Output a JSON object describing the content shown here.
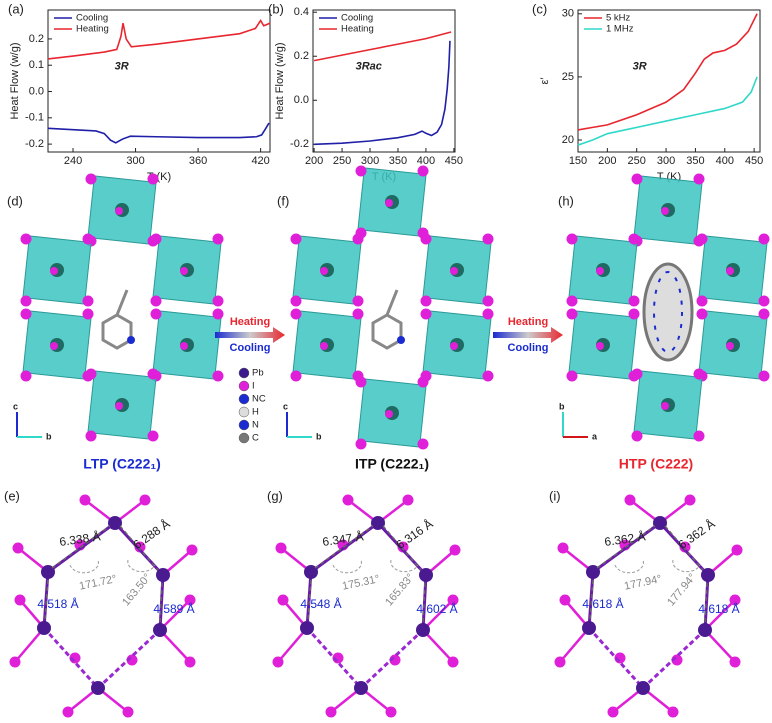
{
  "chart_data": [
    {
      "type": "line",
      "panel_label": "(a)",
      "xlabel": "T (K)",
      "ylabel": "Heat Flow (w/g)",
      "annotation": "3R",
      "legend": "upper left",
      "xlim": [
        216,
        429
      ],
      "ylim": [
        -0.23,
        0.31
      ],
      "xticks": [
        240,
        300,
        360,
        420
      ],
      "yticks": [
        0.2,
        0.1,
        {
          "value": 0,
          "label": "0.0"
        },
        -0.1,
        -0.2
      ],
      "series": [
        {
          "name": "Cooling",
          "color": "#1f1fa8",
          "x": [
            216,
            240,
            262,
            270,
            276,
            281,
            288,
            295,
            320,
            360,
            400,
            416,
            421,
            425,
            428
          ],
          "values": [
            -0.14,
            -0.145,
            -0.15,
            -0.16,
            -0.185,
            -0.195,
            -0.18,
            -0.17,
            -0.172,
            -0.175,
            -0.175,
            -0.172,
            -0.165,
            -0.14,
            -0.12
          ]
        },
        {
          "name": "Heating",
          "color": "#e8262f",
          "x": [
            216,
            240,
            270,
            282,
            286,
            288,
            291,
            296,
            320,
            360,
            400,
            415,
            420,
            423,
            426,
            429
          ],
          "values": [
            0.124,
            0.135,
            0.15,
            0.16,
            0.21,
            0.26,
            0.2,
            0.17,
            0.18,
            0.2,
            0.22,
            0.24,
            0.27,
            0.25,
            0.255,
            0.26
          ]
        }
      ]
    },
    {
      "type": "line",
      "panel_label": "(b)",
      "xlabel": "T (K)",
      "ylabel": "Heat Flow (w/g)",
      "annotation": "3Rac",
      "legend": "upper left",
      "xlim": [
        198,
        452
      ],
      "ylim": [
        -0.235,
        0.41
      ],
      "xticks": [
        200,
        250,
        300,
        350,
        400,
        450
      ],
      "yticks": [
        0.4,
        0.2,
        {
          "value": 0,
          "label": "0.0"
        },
        -0.2
      ],
      "series": [
        {
          "name": "Cooling",
          "color": "#1f1fa8",
          "x": [
            200,
            250,
            300,
            350,
            380,
            393,
            400,
            410,
            420,
            428,
            434,
            438,
            441,
            443
          ],
          "values": [
            -0.2,
            -0.195,
            -0.185,
            -0.17,
            -0.155,
            -0.14,
            -0.15,
            -0.16,
            -0.145,
            -0.11,
            -0.04,
            0.05,
            0.15,
            0.27
          ]
        },
        {
          "name": "Heating",
          "color": "#e8262f",
          "x": [
            200,
            250,
            300,
            350,
            400,
            445
          ],
          "values": [
            0.18,
            0.205,
            0.23,
            0.255,
            0.28,
            0.31
          ]
        }
      ]
    },
    {
      "type": "line",
      "panel_label": "(c)",
      "xlabel": "T (K)",
      "ylabel": "ε′",
      "annotation": "3R",
      "legend": "upper left",
      "xlim": [
        150,
        460
      ],
      "ylim": [
        19.05,
        30.3
      ],
      "xticks": [
        150,
        200,
        250,
        300,
        350,
        400,
        450
      ],
      "yticks": [
        20,
        25,
        30
      ],
      "series": [
        {
          "name": "5 kHz",
          "color": "#e8262f",
          "x": [
            150,
            175,
            200,
            250,
            300,
            330,
            350,
            365,
            380,
            400,
            420,
            440,
            455
          ],
          "values": [
            20.8,
            21.0,
            21.2,
            22.0,
            23.0,
            24.0,
            25.3,
            26.4,
            26.9,
            27.1,
            27.6,
            28.6,
            30.0
          ]
        },
        {
          "name": "1 MHz",
          "color": "#2fd8c8",
          "x": [
            150,
            175,
            200,
            250,
            300,
            350,
            400,
            430,
            445,
            455
          ],
          "values": [
            19.6,
            20.0,
            20.5,
            21.0,
            21.5,
            22.0,
            22.5,
            23.0,
            23.8,
            25.0
          ]
        }
      ]
    }
  ],
  "structures": {
    "panels": [
      {
        "label": "(d)",
        "title": "LTP (C222₁)",
        "axes": [
          "c",
          "b"
        ]
      },
      {
        "label": "(f)",
        "title": "ITP (C222₁)",
        "axes": [
          "c",
          "b"
        ]
      },
      {
        "label": "(h)",
        "title": "HTP (C222)",
        "axes": [
          "b",
          "a"
        ]
      }
    ],
    "arrows": [
      {
        "top": "Heating",
        "bottom": "Cooling"
      },
      {
        "top": "Heating",
        "bottom": "Cooling"
      }
    ],
    "legend": [
      "Pb",
      "I",
      "NC",
      "H",
      "N",
      "C"
    ],
    "distance_panels": [
      {
        "label": "(e)",
        "distances": [
          "6.338 Å",
          "6.288 Å",
          "4.518 Å",
          "4.589 Å"
        ],
        "angles": [
          "171.72°",
          "163.50°"
        ]
      },
      {
        "label": "(g)",
        "distances": [
          "6.347 Å",
          "6.316 Å",
          "4.548 Å",
          "4.602 Å"
        ],
        "angles": [
          "175.31°",
          "165.83°"
        ]
      },
      {
        "label": "(i)",
        "distances": [
          "6.362 Å",
          "6.362 Å",
          "4.618 Å",
          "4.618 Å"
        ],
        "angles": [
          "177.94°",
          "177.94°"
        ]
      }
    ]
  }
}
